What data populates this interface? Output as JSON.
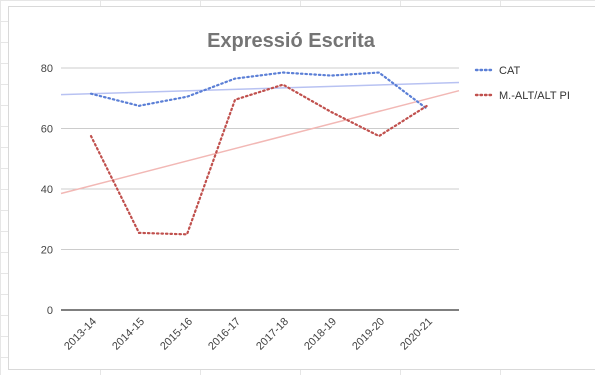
{
  "chart_data": {
    "type": "line",
    "title": "Expressió Escrita",
    "categories": [
      "2013-14",
      "2014-15",
      "2015-16",
      "2016-17",
      "2017-18",
      "2018-19",
      "2019-20",
      "2020-21"
    ],
    "ylim": [
      0,
      80
    ],
    "yticks": [
      0,
      20,
      40,
      60,
      80
    ],
    "grid": true,
    "legend_position": "right",
    "series": [
      {
        "name": "CAT",
        "values": [
          71.5,
          67.5,
          70.5,
          76.5,
          78.5,
          77.5,
          78.5,
          66.5
        ],
        "color": "#5b7fd6",
        "style": "dotted",
        "trendline": [
          71.2,
          75.2
        ],
        "trendline_color": "#b8c2f2"
      },
      {
        "name": "M.-ALT/ALT PI",
        "values": [
          57.5,
          25.5,
          25,
          69.5,
          74.5,
          65.5,
          57.5,
          67.5
        ],
        "color": "#c0504d",
        "style": "dotted",
        "trendline": [
          38.5,
          72.5
        ],
        "trendline_color": "#f2b8b5"
      }
    ]
  }
}
